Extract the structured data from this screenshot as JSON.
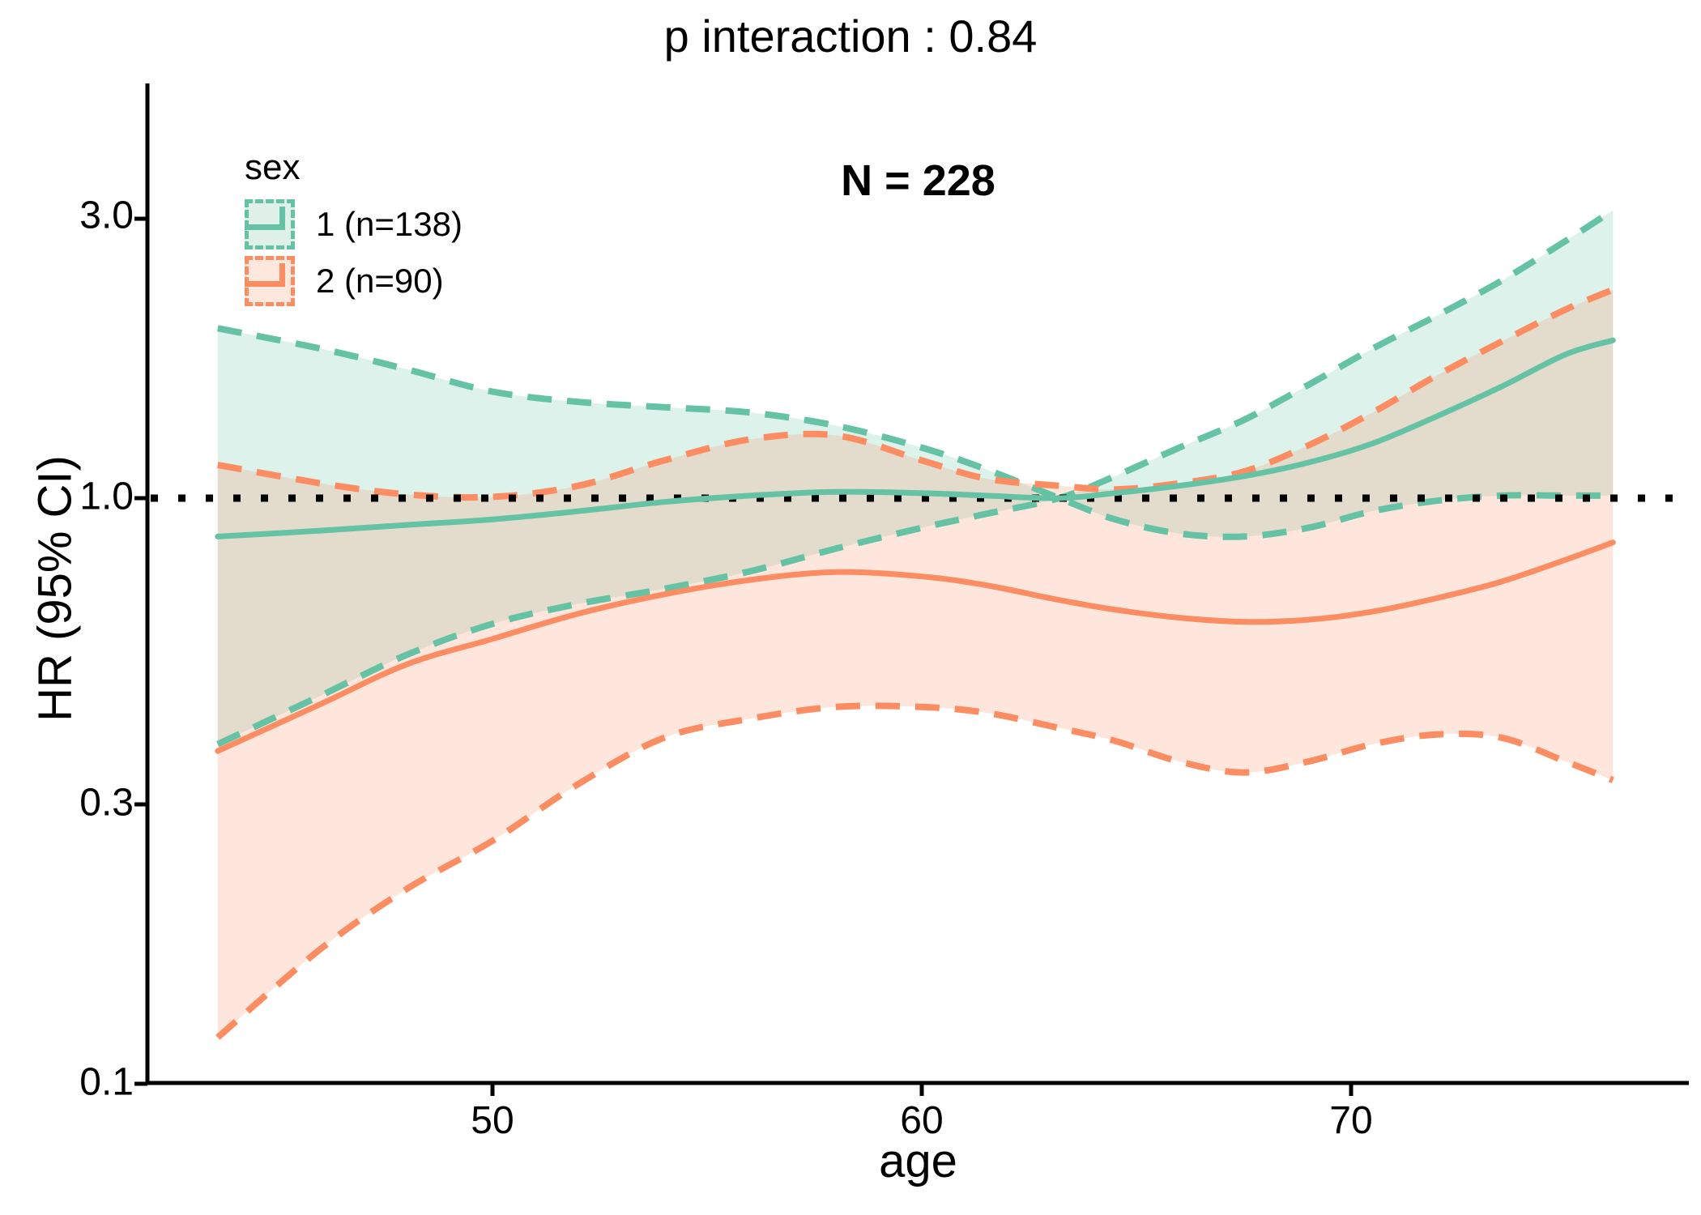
{
  "title": "p interaction : 0.84",
  "annotation_n": "N = 228",
  "legend": {
    "title": "sex",
    "items": [
      {
        "label": "1 (n=138)",
        "color": "#66C2A5",
        "fill": "#DFF0E9"
      },
      {
        "label": "2 (n=90)",
        "color": "#FC8D62",
        "fill": "#FEE7DD"
      }
    ]
  },
  "axes": {
    "x_label": "age",
    "y_label": "HR (95% CI)",
    "x_ticks": [
      "50",
      "60",
      "70"
    ],
    "y_ticks": [
      "3.0",
      "1.0",
      "0.3",
      "0.1"
    ]
  },
  "colors": {
    "series1": "#66C2A5",
    "series2": "#FC8D62",
    "reference_line": "#000000",
    "axis": "#000000",
    "background": "#ffffff"
  },
  "chart_data": {
    "type": "line",
    "title": "p interaction : 0.84",
    "subtitle": "N = 228",
    "xlabel": "age",
    "ylabel": "HR (95% CI)",
    "y_scale": "log10",
    "x_range": [
      41.9,
      77.8
    ],
    "y_tick_values": [
      3.0,
      1.0,
      0.3,
      0.1
    ],
    "x_tick_values": [
      50,
      60,
      70
    ],
    "reference_line_y": 1.0,
    "x": [
      43.6,
      46,
      48,
      50,
      52,
      54,
      56,
      58,
      60,
      61.5,
      63.2,
      64.5,
      66,
      67.5,
      69,
      70.5,
      72,
      73.5,
      75,
      76.1
    ],
    "series": [
      {
        "name": "1 (n=138)",
        "color": "#66C2A5",
        "fit": [
          0.86,
          0.88,
          0.9,
          0.92,
          0.95,
          0.985,
          1.01,
          1.025,
          1.02,
          1.01,
          1.0,
          1.02,
          1.05,
          1.09,
          1.15,
          1.24,
          1.38,
          1.55,
          1.76,
          1.86
        ],
        "ci_a": [
          1.95,
          1.8,
          1.66,
          1.52,
          1.46,
          1.43,
          1.4,
          1.33,
          1.22,
          1.12,
          1.0,
          0.92,
          0.87,
          0.86,
          0.89,
          0.95,
          0.99,
          1.01,
          1.01,
          1.01
        ],
        "ci_b": [
          0.38,
          0.46,
          0.54,
          0.61,
          0.66,
          0.7,
          0.75,
          0.82,
          0.89,
          0.94,
          1.0,
          1.09,
          1.22,
          1.36,
          1.56,
          1.8,
          2.05,
          2.35,
          2.75,
          3.1
        ]
      },
      {
        "name": "2 (n=90)",
        "color": "#FC8D62",
        "fit": [
          0.37,
          0.445,
          0.52,
          0.575,
          0.635,
          0.685,
          0.725,
          0.748,
          0.735,
          0.71,
          0.67,
          0.645,
          0.625,
          0.615,
          0.62,
          0.64,
          0.675,
          0.72,
          0.785,
          0.84
        ],
        "ci_a": [
          1.14,
          1.06,
          1.015,
          1.005,
          1.05,
          1.16,
          1.26,
          1.28,
          1.16,
          1.08,
          1.05,
          1.035,
          1.06,
          1.11,
          1.23,
          1.4,
          1.62,
          1.85,
          2.1,
          2.27
        ],
        "ci_b": [
          0.12,
          0.17,
          0.215,
          0.26,
          0.325,
          0.39,
          0.42,
          0.44,
          0.44,
          0.43,
          0.405,
          0.385,
          0.355,
          0.34,
          0.355,
          0.38,
          0.395,
          0.39,
          0.355,
          0.33
        ]
      }
    ],
    "legend_position": "top-left-inside",
    "grid": false
  }
}
